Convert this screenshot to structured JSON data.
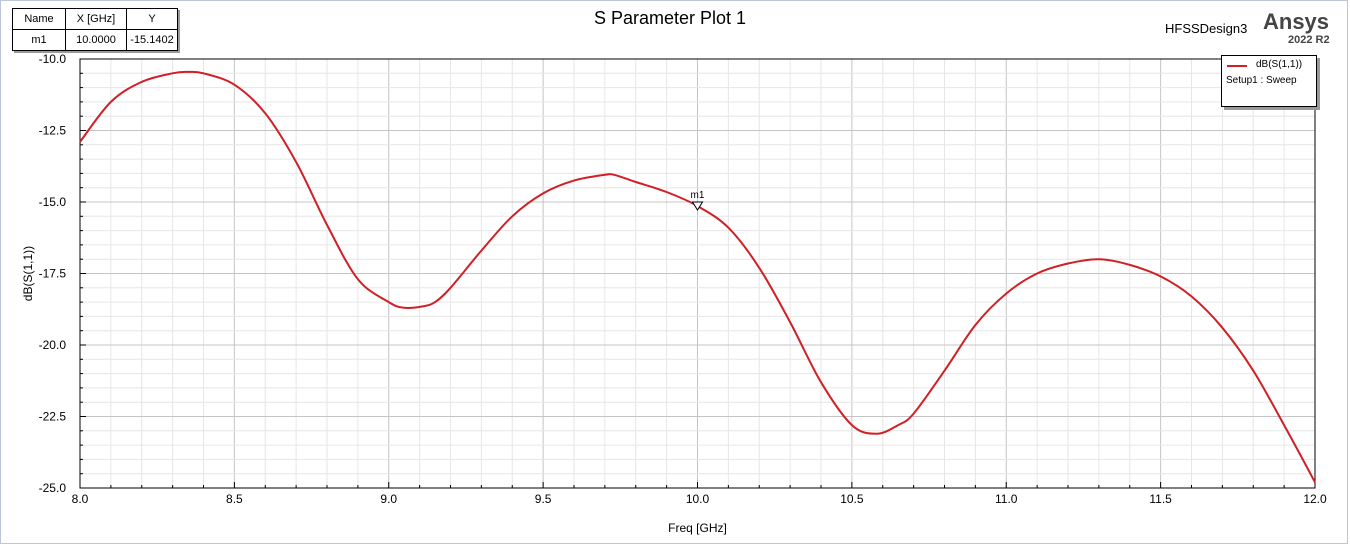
{
  "chart_data": {
    "type": "line",
    "title": "S Parameter Plot 1",
    "xlabel": "Freq [GHz]",
    "ylabel": "dB(S(1,1))",
    "xlim": [
      8.0,
      12.0
    ],
    "ylim": [
      -25.0,
      -10.0
    ],
    "xticks": [
      "8.0",
      "8.5",
      "9.0",
      "9.5",
      "10.0",
      "10.5",
      "11.0",
      "11.5",
      "12.0"
    ],
    "yticks": [
      "-10.0",
      "-12.5",
      "-15.0",
      "-17.5",
      "-20.0",
      "-22.5",
      "-25.0"
    ],
    "grid": true,
    "legend_position": "top-right",
    "series": [
      {
        "name": "dB(S(1,1))",
        "color": "#d11f26",
        "x": [
          8.0,
          8.1,
          8.2,
          8.3,
          8.35,
          8.4,
          8.5,
          8.6,
          8.7,
          8.8,
          8.9,
          9.0,
          9.05,
          9.11,
          9.15,
          9.2,
          9.3,
          9.4,
          9.5,
          9.6,
          9.7,
          9.73,
          9.8,
          9.9,
          10.0,
          10.1,
          10.2,
          10.3,
          10.4,
          10.5,
          10.58,
          10.65,
          10.7,
          10.8,
          10.9,
          11.0,
          11.1,
          11.2,
          11.3,
          11.4,
          11.5,
          11.6,
          11.7,
          11.8,
          11.9,
          12.0
        ],
        "y": [
          -12.9,
          -11.5,
          -10.8,
          -10.5,
          -10.45,
          -10.5,
          -10.9,
          -11.9,
          -13.6,
          -15.8,
          -17.7,
          -18.5,
          -18.7,
          -18.65,
          -18.5,
          -18.0,
          -16.7,
          -15.5,
          -14.7,
          -14.25,
          -14.05,
          -14.05,
          -14.3,
          -14.65,
          -15.14,
          -15.9,
          -17.3,
          -19.2,
          -21.3,
          -22.8,
          -23.1,
          -22.8,
          -22.4,
          -20.9,
          -19.3,
          -18.2,
          -17.5,
          -17.15,
          -17.0,
          -17.2,
          -17.6,
          -18.3,
          -19.4,
          -20.9,
          -22.8,
          -24.8
        ]
      }
    ],
    "markers": [
      {
        "name": "m1",
        "x": 10.0,
        "y": -15.1402
      }
    ]
  },
  "header": {
    "design_name": "HFSSDesign3",
    "brand": "Ansys",
    "version": "2022 R2"
  },
  "marker_table": {
    "headers": [
      "Name",
      "X [GHz]",
      "Y"
    ],
    "rows": [
      [
        "m1",
        "10.0000",
        "-15.1402"
      ]
    ]
  },
  "legend": {
    "series_label": "dB(S(1,1))",
    "setup_label": "Setup1 : Sweep"
  }
}
